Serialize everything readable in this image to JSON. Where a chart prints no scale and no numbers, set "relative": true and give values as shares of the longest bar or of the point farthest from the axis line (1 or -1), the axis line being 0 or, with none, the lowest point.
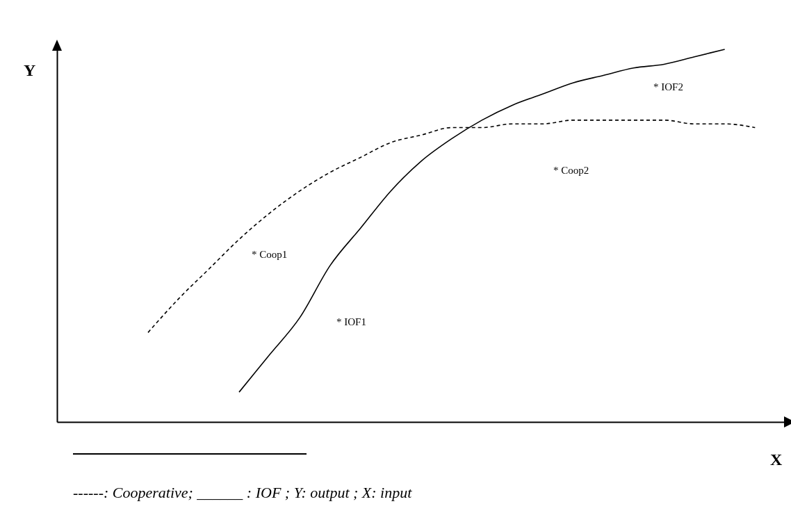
{
  "chart_data": {
    "type": "line",
    "relative": true,
    "xlabel": "X",
    "ylabel": "Y",
    "categories": [
      null,
      null,
      null,
      null,
      null,
      null,
      null,
      null,
      null,
      null,
      null,
      null,
      null,
      null,
      null,
      null,
      null,
      null,
      null,
      null,
      null,
      null,
      null,
      null,
      null
    ],
    "series": [
      {
        "color": "#000000",
        "line_style": "dashed",
        "values": [
          null,
          null,
          null,
          0.24,
          0.33,
          0.41,
          0.49,
          0.56,
          0.62,
          0.67,
          0.71,
          0.75,
          0.77,
          0.79,
          0.79,
          0.8,
          0.8,
          0.81,
          0.81,
          0.81,
          0.81,
          0.8,
          0.8,
          0.79,
          null
        ]
      },
      {
        "color": "#000000",
        "line_style": "solid",
        "values": [
          null,
          null,
          null,
          null,
          null,
          null,
          0.08,
          0.18,
          0.28,
          0.42,
          0.52,
          0.62,
          0.7,
          0.76,
          0.81,
          0.85,
          0.88,
          0.91,
          0.93,
          0.95,
          0.96,
          0.98,
          1.0,
          null,
          null
        ]
      }
    ],
    "grid": false,
    "tick_labels": false,
    "annotations": [
      "* Coop1",
      "* IOF1",
      "* Coop2",
      "* IOF2",
      "------: Cooperative; ______ : IOF ; Y: output ; X: input"
    ]
  }
}
